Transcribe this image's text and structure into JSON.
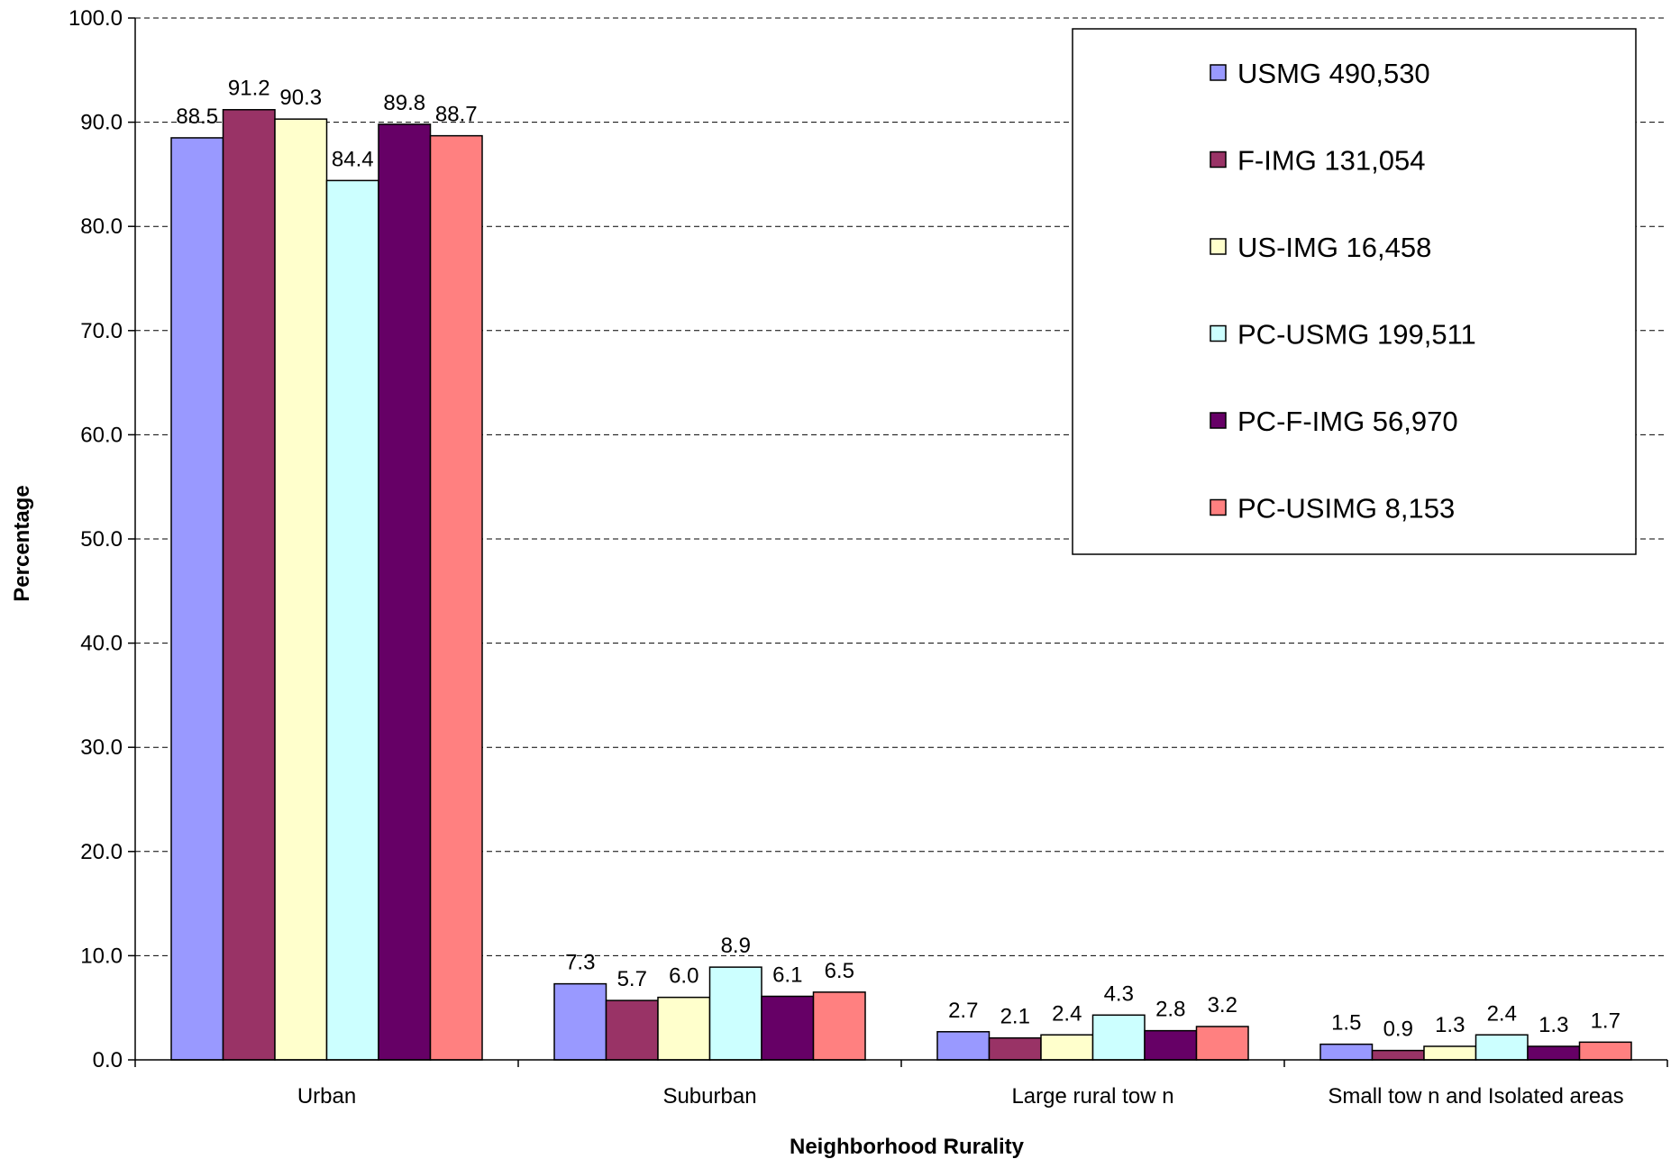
{
  "chart_data": {
    "type": "bar",
    "title": "",
    "xlabel": "Neighborhood Rurality",
    "ylabel": "Percentage",
    "ylim": [
      0,
      100
    ],
    "ytick_step": 10,
    "ytick_format": "0.0",
    "grid": "horizontal dashed",
    "legend_position": "top-right",
    "categories": [
      "Urban",
      "Suburban",
      "Large rural tow n",
      "Small tow n and Isolated areas"
    ],
    "series": [
      {
        "name": "USMG 490,530",
        "color": "#9999FF",
        "values": [
          88.5,
          7.3,
          2.7,
          1.5
        ]
      },
      {
        "name": "F-IMG 131,054",
        "color": "#993366",
        "values": [
          91.2,
          5.7,
          2.1,
          0.9
        ]
      },
      {
        "name": "US-IMG 16,458",
        "color": "#FFFFCC",
        "values": [
          90.3,
          6.0,
          2.4,
          1.3
        ]
      },
      {
        "name": "PC-USMG 199,511",
        "color": "#CCFFFF",
        "values": [
          84.4,
          8.9,
          4.3,
          2.4
        ]
      },
      {
        "name": "PC-F-IMG 56,970",
        "color": "#660066",
        "values": [
          89.8,
          6.1,
          2.8,
          1.3
        ]
      },
      {
        "name": "PC-USIMG 8,153",
        "color": "#FF8080",
        "values": [
          88.7,
          6.5,
          3.2,
          1.7
        ]
      }
    ]
  }
}
